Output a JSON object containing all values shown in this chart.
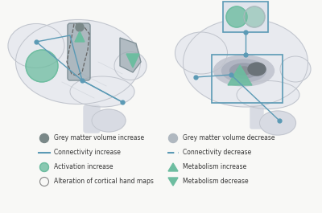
{
  "bg_color": "#f8f8f6",
  "teal": "#6dbda0",
  "blue_line": "#5b9ab5",
  "grey_dark": "#7a8888",
  "grey_light": "#b0b8c0",
  "grey_med": "#9aacb0",
  "brain_color": "#e8eaef",
  "brain_outline": "#c0c4cc",
  "brain_color2": "#d8dbe3",
  "inner_dark": "#8a9098",
  "legend": {
    "left": [
      {
        "type": "circle_dark",
        "label": "Grey matter volume increase"
      },
      {
        "type": "line_solid",
        "label": "Connectivity increase"
      },
      {
        "type": "circle_teal",
        "label": "Activation increase"
      },
      {
        "type": "circle_open",
        "label": "Alteration of cortical hand maps"
      }
    ],
    "right": [
      {
        "type": "circle_light",
        "label": "Grey matter volume decrease"
      },
      {
        "type": "line_dashed",
        "label": "Connectivity decrease"
      },
      {
        "type": "tri_up",
        "label": "Metabolism increase"
      },
      {
        "type": "tri_down",
        "label": "Metabolism decrease"
      }
    ]
  }
}
